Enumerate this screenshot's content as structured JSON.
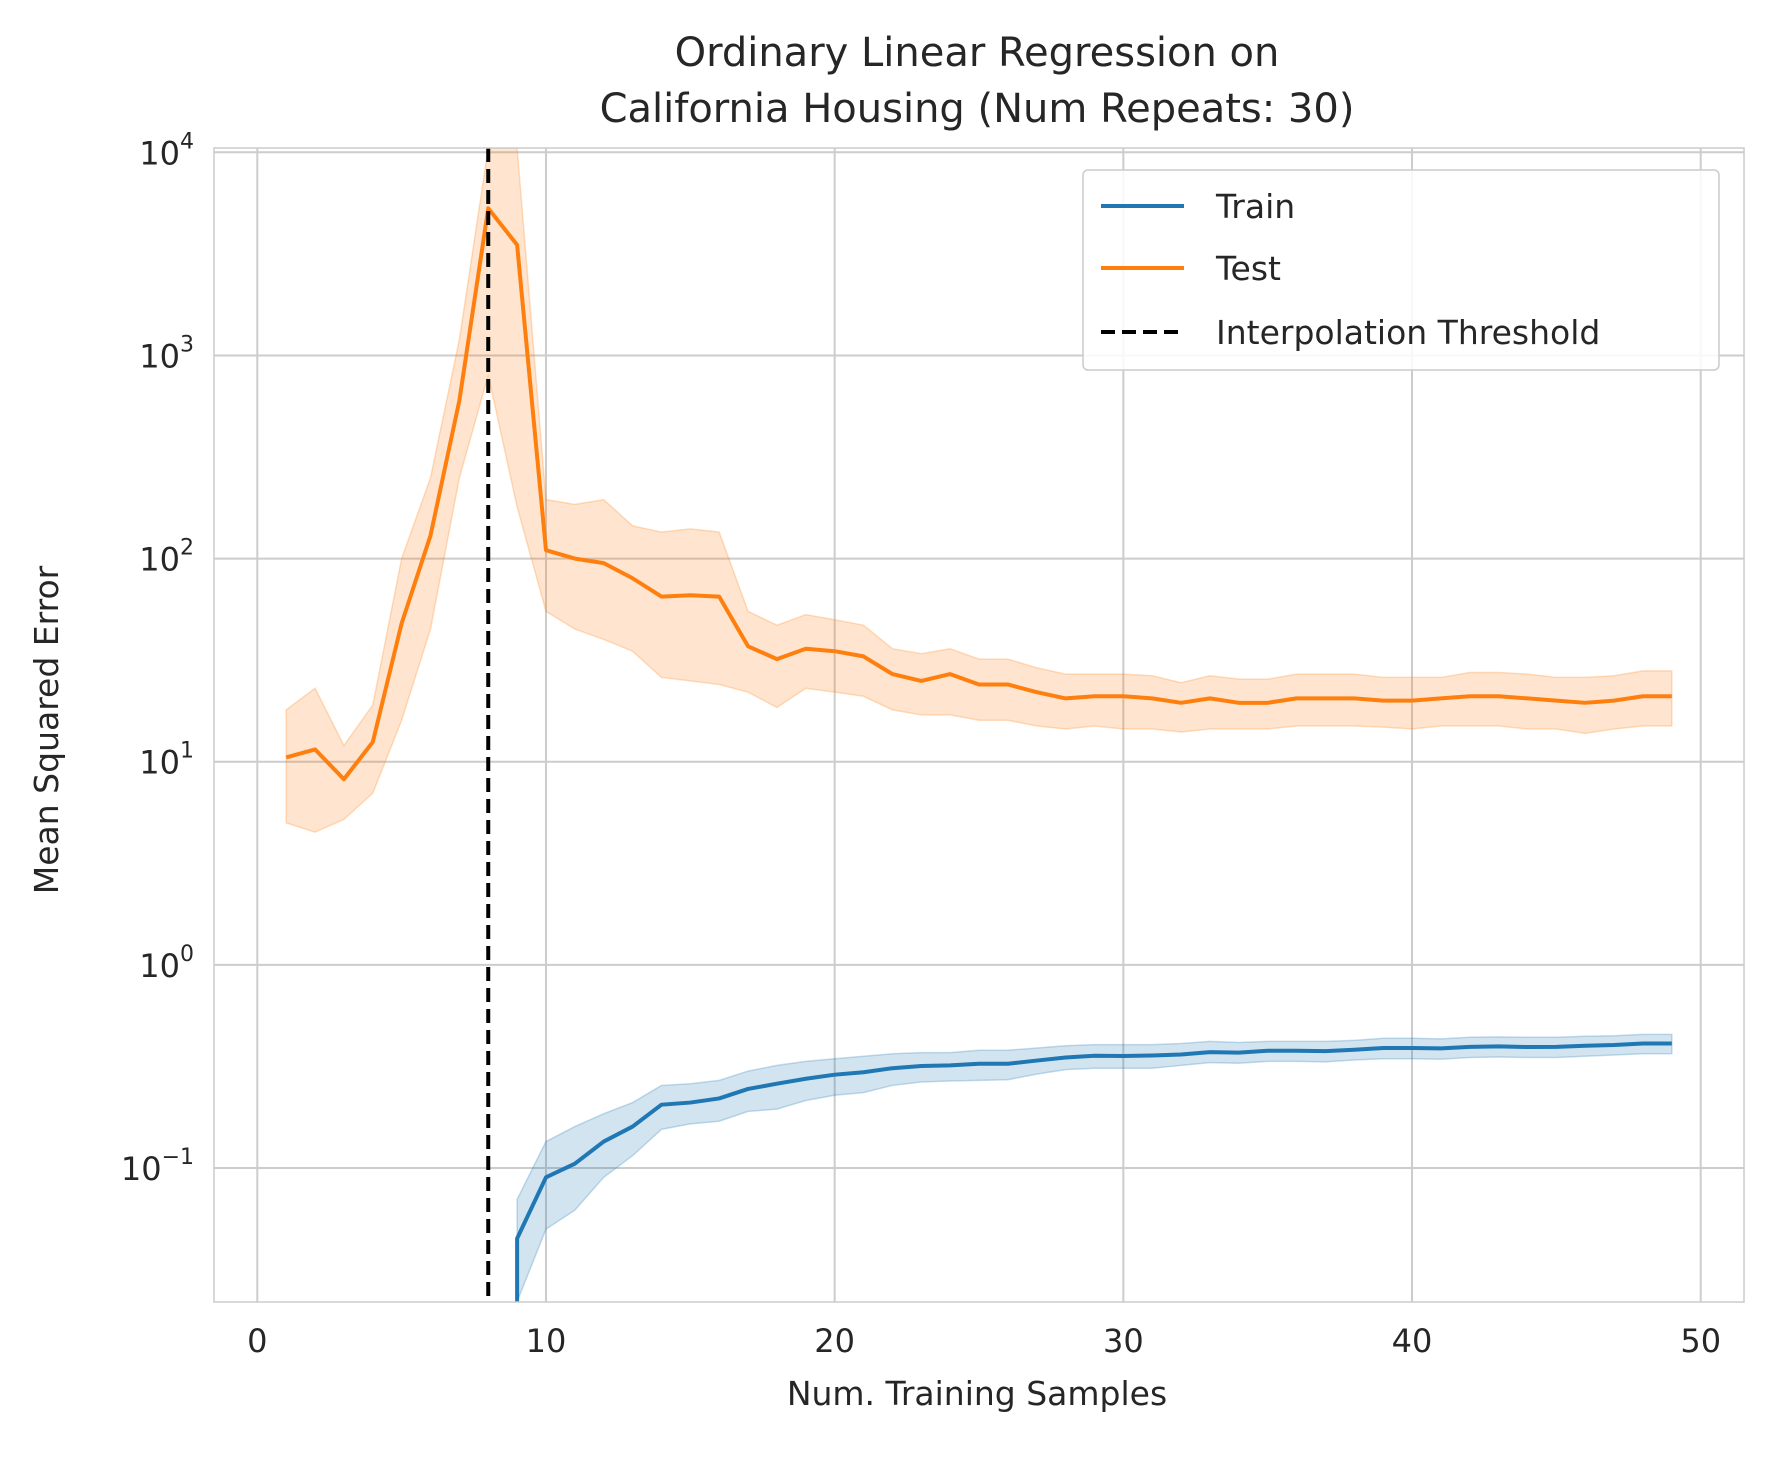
{
  "chart_data": {
    "type": "line",
    "title": [
      "Ordinary Linear Regression on",
      "California Housing (Num Repeats: 30)"
    ],
    "xlabel": "Num. Training Samples",
    "ylabel": "Mean Squared Error",
    "xlim": [
      -1.5,
      51.5
    ],
    "ylim": [
      0.0219,
      10500
    ],
    "yscale": "log",
    "grid": true,
    "legend_position": "upper right",
    "x_ticks": [
      {
        "value": 0,
        "label": "0"
      },
      {
        "value": 10,
        "label": "10"
      },
      {
        "value": 20,
        "label": "20"
      },
      {
        "value": 30,
        "label": "30"
      },
      {
        "value": 40,
        "label": "40"
      },
      {
        "value": 50,
        "label": "50"
      }
    ],
    "y_ticks": [
      {
        "value": 0.1,
        "base": "10",
        "exp": "−1"
      },
      {
        "value": 1,
        "base": "10",
        "exp": "0"
      },
      {
        "value": 10,
        "base": "10",
        "exp": "1"
      },
      {
        "value": 100,
        "base": "10",
        "exp": "2"
      },
      {
        "value": 1000,
        "base": "10",
        "exp": "3"
      },
      {
        "value": 10000,
        "base": "10",
        "exp": "4"
      }
    ],
    "series": [
      {
        "name": "Train",
        "color": "#1f77b4",
        "x": [
          9,
          10,
          11,
          12,
          13,
          14,
          15,
          16,
          17,
          18,
          19,
          20,
          21,
          22,
          23,
          24,
          25,
          26,
          27,
          28,
          29,
          30,
          31,
          32,
          33,
          34,
          35,
          36,
          37,
          38,
          39,
          40,
          41,
          42,
          43,
          44,
          45,
          46,
          47,
          48,
          49
        ],
        "y": [
          0.045,
          0.09,
          0.105,
          0.135,
          0.16,
          0.205,
          0.21,
          0.22,
          0.245,
          0.26,
          0.275,
          0.288,
          0.296,
          0.31,
          0.318,
          0.32,
          0.326,
          0.326,
          0.338,
          0.35,
          0.357,
          0.356,
          0.358,
          0.362,
          0.372,
          0.37,
          0.378,
          0.378,
          0.376,
          0.382,
          0.39,
          0.39,
          0.388,
          0.395,
          0.397,
          0.394,
          0.395,
          0.4,
          0.403,
          0.41,
          0.41
        ],
        "lower": [
          0.022,
          0.05,
          0.062,
          0.09,
          0.115,
          0.155,
          0.165,
          0.17,
          0.19,
          0.195,
          0.215,
          0.228,
          0.235,
          0.255,
          0.265,
          0.268,
          0.27,
          0.272,
          0.29,
          0.305,
          0.31,
          0.31,
          0.31,
          0.32,
          0.33,
          0.328,
          0.335,
          0.335,
          0.333,
          0.34,
          0.345,
          0.345,
          0.343,
          0.35,
          0.352,
          0.35,
          0.35,
          0.355,
          0.36,
          0.365,
          0.365
        ],
        "upper": [
          0.07,
          0.135,
          0.16,
          0.185,
          0.21,
          0.255,
          0.26,
          0.27,
          0.3,
          0.32,
          0.335,
          0.345,
          0.355,
          0.365,
          0.37,
          0.37,
          0.38,
          0.38,
          0.39,
          0.4,
          0.405,
          0.405,
          0.405,
          0.41,
          0.42,
          0.415,
          0.42,
          0.42,
          0.42,
          0.425,
          0.435,
          0.435,
          0.432,
          0.44,
          0.442,
          0.44,
          0.44,
          0.445,
          0.448,
          0.455,
          0.455
        ]
      },
      {
        "name": "Test",
        "color": "#ff7f0e",
        "x": [
          1,
          2,
          3,
          4,
          5,
          6,
          7,
          8,
          9,
          10,
          11,
          12,
          13,
          14,
          15,
          16,
          17,
          18,
          19,
          20,
          21,
          22,
          23,
          24,
          25,
          26,
          27,
          28,
          29,
          30,
          31,
          32,
          33,
          34,
          35,
          36,
          37,
          38,
          39,
          40,
          41,
          42,
          43,
          44,
          45,
          46,
          47,
          48,
          49
        ],
        "y": [
          10.5,
          11.5,
          8.2,
          12.5,
          48,
          130,
          600,
          5300,
          3500,
          110,
          100,
          95,
          80,
          65,
          66,
          65,
          37,
          32,
          36,
          35,
          33,
          27,
          25,
          27,
          24,
          24,
          22,
          20.5,
          21,
          21,
          20.5,
          19.5,
          20.5,
          19.5,
          19.5,
          20.5,
          20.5,
          20.5,
          20,
          20,
          20.5,
          21,
          21,
          20.5,
          20,
          19.5,
          20,
          21,
          21
        ],
        "lower": [
          5,
          4.5,
          5.2,
          7,
          16,
          45,
          250,
          800,
          180,
          55,
          45,
          40,
          35,
          26,
          25,
          24,
          22,
          18.5,
          23,
          22,
          21,
          18,
          17,
          17,
          16,
          16,
          15,
          14.5,
          15,
          14.5,
          14.5,
          14,
          14.5,
          14.5,
          14.5,
          15,
          15,
          15,
          14.8,
          14.5,
          15,
          15,
          15,
          14.5,
          14.5,
          13.8,
          14.5,
          15,
          15
        ],
        "upper": [
          18,
          23,
          12,
          19,
          100,
          250,
          1200,
          10500,
          10500,
          195,
          185,
          195,
          145,
          135,
          140,
          135,
          55,
          47,
          53,
          50,
          47,
          36,
          34,
          36,
          32,
          32,
          29,
          27,
          27,
          27,
          26.5,
          24.5,
          26.5,
          25.5,
          25.5,
          27,
          27,
          27,
          26,
          26,
          26,
          27.5,
          27.5,
          27,
          26,
          26,
          26.5,
          28,
          28
        ]
      }
    ],
    "vline": {
      "name": "Interpolation Threshold",
      "x": 8,
      "color": "#000000",
      "style": "dashed"
    },
    "legend": [
      "Train",
      "Test",
      "Interpolation Threshold"
    ]
  }
}
